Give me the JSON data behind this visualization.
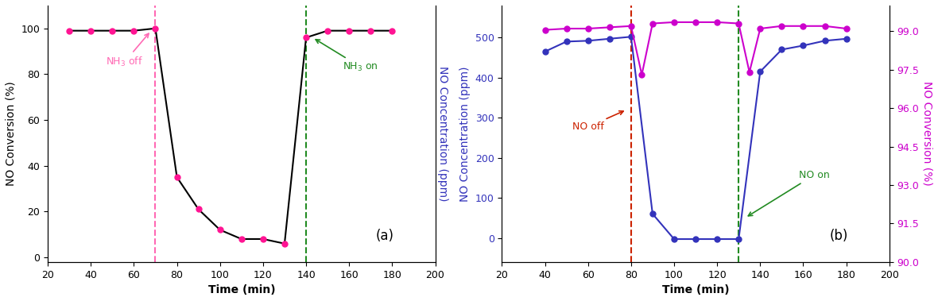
{
  "panel_a": {
    "x": [
      30,
      40,
      50,
      60,
      70,
      80,
      90,
      100,
      110,
      120,
      130,
      140,
      150,
      160,
      170,
      180
    ],
    "y_conv": [
      99,
      99,
      99,
      99,
      100,
      35,
      21,
      12,
      8,
      8,
      6,
      96,
      99,
      99,
      99,
      99
    ],
    "vline_off": 70,
    "vline_on": 140,
    "xlabel": "Time (min)",
    "ylabel_left": "NO Conversion (%)",
    "ylabel_right": "NO Concentration (ppm)",
    "xlim": [
      20,
      200
    ],
    "ylim": [
      -2,
      110
    ],
    "yticks": [
      0,
      20,
      40,
      60,
      80,
      100
    ],
    "xticks": [
      20,
      40,
      60,
      80,
      100,
      120,
      140,
      160,
      180,
      200
    ],
    "label": "(a)",
    "nh3_off_label": "NH$_3$ off",
    "nh3_on_label": "NH$_3$ on",
    "line_color": "#000000",
    "marker_color": "#FF1493",
    "vline_off_color": "#FF69B4",
    "vline_on_color": "#228B22",
    "annotation_off_color": "#FF69B4",
    "annotation_on_color": "#228B22",
    "right_label_color": "#3333BB"
  },
  "panel_b": {
    "x_conc": [
      40,
      50,
      60,
      70,
      80,
      90,
      100,
      110,
      120,
      130,
      140,
      150,
      160,
      170,
      180
    ],
    "y_conc": [
      465,
      490,
      492,
      497,
      502,
      60,
      -3,
      -3,
      -3,
      -3,
      415,
      470,
      480,
      492,
      497
    ],
    "x_conv": [
      40,
      50,
      60,
      70,
      80,
      85,
      90,
      100,
      110,
      120,
      130,
      135,
      140,
      150,
      160,
      170,
      180
    ],
    "y_conv": [
      99.05,
      99.1,
      99.1,
      99.15,
      99.2,
      97.3,
      99.3,
      99.35,
      99.35,
      99.35,
      99.3,
      97.4,
      99.1,
      99.2,
      99.2,
      99.2,
      99.1
    ],
    "vline_off": 80,
    "vline_on": 130,
    "xlabel": "Time (min)",
    "ylabel_left": "NO Concentration (ppm)",
    "ylabel_right": "NO Conversion (%)",
    "xlim": [
      20,
      200
    ],
    "ylim_left": [
      -60,
      580
    ],
    "ylim_right": [
      90.0,
      100.0
    ],
    "yticks_left": [
      0,
      100,
      200,
      300,
      400,
      500
    ],
    "yticks_right": [
      90.0,
      91.5,
      93.0,
      94.5,
      96.0,
      97.5,
      99.0
    ],
    "xticks": [
      20,
      40,
      60,
      80,
      100,
      120,
      140,
      160,
      180,
      200
    ],
    "label": "(b)",
    "no_off_label": "NO off",
    "no_on_label": "NO on",
    "conc_color": "#3333BB",
    "conv_color": "#CC00CC",
    "vline_off_color": "#CC2200",
    "vline_on_color": "#228B22",
    "annotation_off_color": "#CC2200",
    "annotation_on_color": "#228B22"
  }
}
